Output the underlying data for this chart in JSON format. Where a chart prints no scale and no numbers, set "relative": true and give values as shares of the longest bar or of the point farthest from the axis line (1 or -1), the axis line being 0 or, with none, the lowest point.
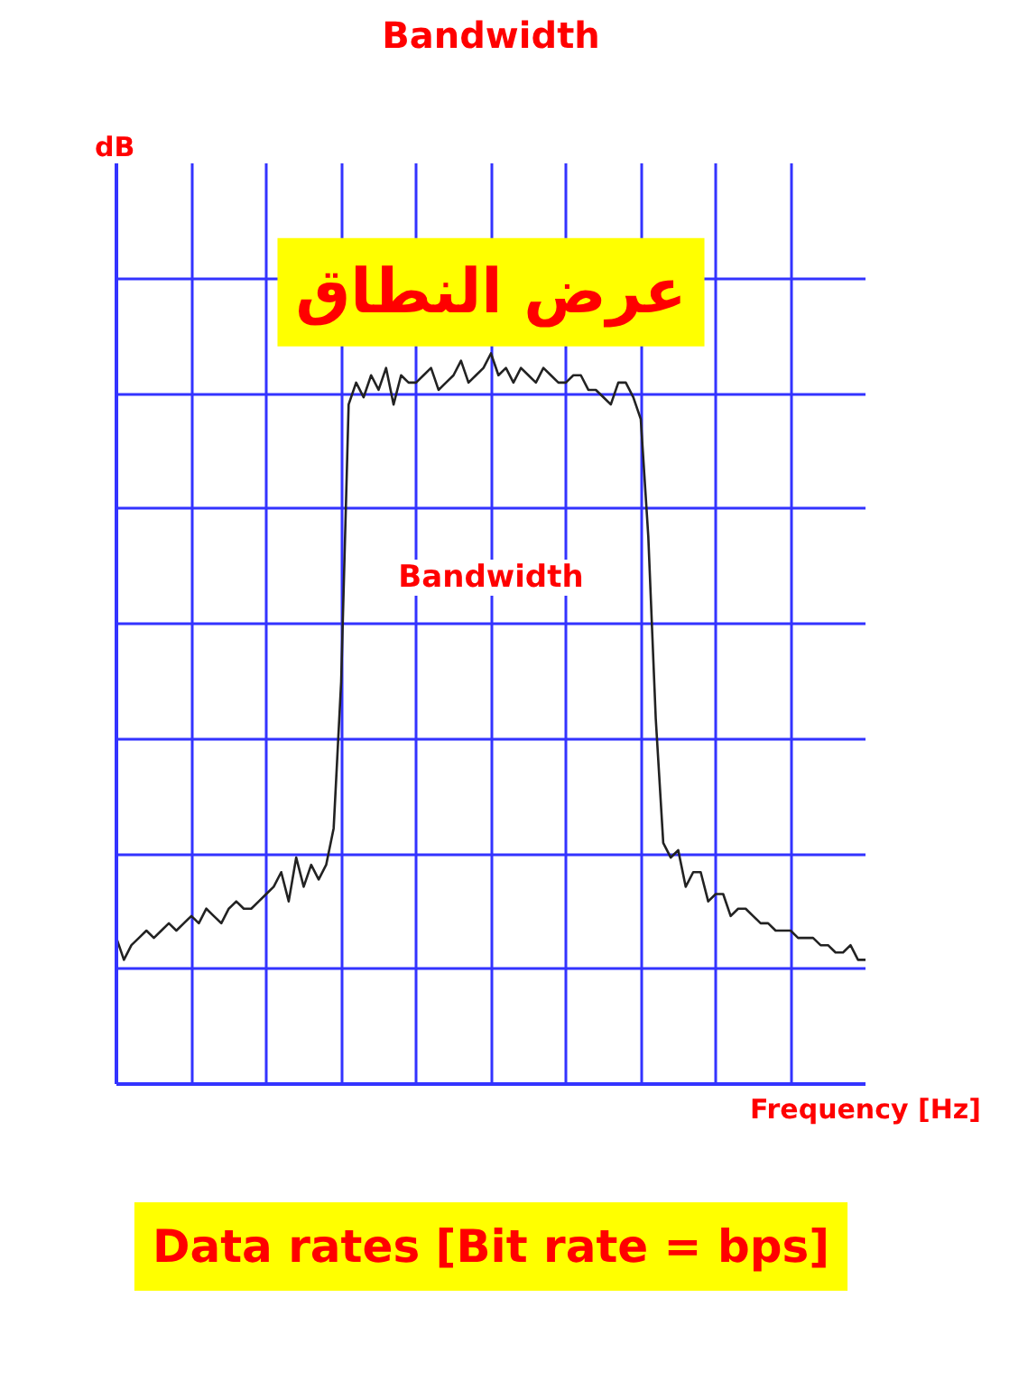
{
  "chart_data": {
    "type": "line",
    "title": "Bandwidth",
    "xlabel": "Frequency [Hz]",
    "annotations": [
      "عرض النطاق",
      "Bandwidth",
      "Data rates [Bit rate = bps]",
      "dB"
    ],
    "categories": [
      null,
      null,
      null,
      null,
      null,
      null,
      null,
      null,
      null,
      null,
      null,
      null,
      null,
      null,
      null,
      null,
      null,
      null,
      null,
      null,
      null,
      null,
      null,
      null,
      null,
      null,
      null,
      null,
      null,
      null,
      null,
      null,
      null,
      null,
      null,
      null,
      null,
      null,
      null,
      null,
      null,
      null,
      null,
      null,
      null,
      null,
      null,
      null,
      null,
      null,
      null,
      null,
      null,
      null,
      null,
      null,
      null,
      null,
      null,
      null,
      null,
      null,
      null,
      null,
      null,
      null,
      null,
      null,
      null,
      null,
      null,
      null,
      null,
      null,
      null,
      null,
      null,
      null,
      null,
      null,
      null,
      null,
      null,
      null,
      null,
      null,
      null,
      null,
      null,
      null,
      null,
      null,
      null,
      null,
      null,
      null,
      null,
      null,
      null,
      null,
      null
    ],
    "series": [
      {
        "color": "#222222",
        "values": [
          0.2,
          0.17,
          0.19,
          0.2,
          0.21,
          0.2,
          0.21,
          0.22,
          0.21,
          0.22,
          0.23,
          0.22,
          0.24,
          0.23,
          0.22,
          0.24,
          0.25,
          0.24,
          0.24,
          0.25,
          0.26,
          0.27,
          0.29,
          0.25,
          0.31,
          0.27,
          0.3,
          0.28,
          0.3,
          0.35,
          0.55,
          0.93,
          0.96,
          0.94,
          0.97,
          0.95,
          0.98,
          0.93,
          0.97,
          0.96,
          0.96,
          0.97,
          0.98,
          0.95,
          0.96,
          0.97,
          0.99,
          0.96,
          0.97,
          0.98,
          1.0,
          0.97,
          0.98,
          0.96,
          0.98,
          0.97,
          0.96,
          0.98,
          0.97,
          0.96,
          0.96,
          0.97,
          0.97,
          0.95,
          0.95,
          0.94,
          0.93,
          0.96,
          0.96,
          0.94,
          0.91,
          0.75,
          0.5,
          0.33,
          0.31,
          0.32,
          0.27,
          0.29,
          0.29,
          0.25,
          0.26,
          0.26,
          0.23,
          0.24,
          0.24,
          0.23,
          0.22,
          0.22,
          0.21,
          0.21,
          0.21,
          0.2,
          0.2,
          0.2,
          0.19,
          0.19,
          0.18,
          0.18,
          0.19,
          0.17,
          0.17
        ]
      }
    ],
    "relative": true,
    "grid": true
  }
}
